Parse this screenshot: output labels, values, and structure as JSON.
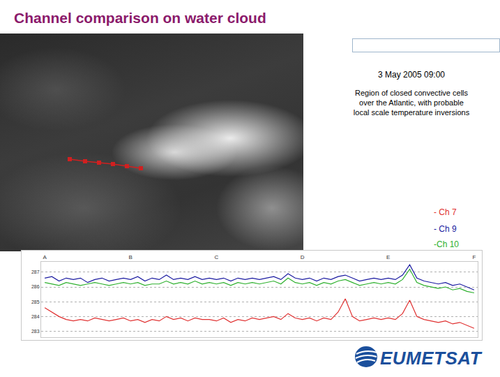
{
  "slide": {
    "title": "Channel comparison on water cloud",
    "date": "3 May 2005 09:00",
    "description": "Region of closed convective cells over the Atlantic, with probable local scale temperature inversions",
    "logo": "EUMETSAT"
  },
  "chart_data": {
    "type": "line",
    "categories": [
      "A",
      null,
      null,
      null,
      null,
      null,
      null,
      null,
      null,
      null,
      null,
      null,
      "B",
      null,
      null,
      null,
      null,
      null,
      null,
      null,
      null,
      null,
      null,
      null,
      "C",
      null,
      null,
      null,
      null,
      null,
      null,
      null,
      null,
      null,
      null,
      null,
      "D",
      null,
      null,
      null,
      null,
      null,
      null,
      null,
      null,
      null,
      null,
      null,
      "E",
      null,
      null,
      null,
      null,
      null,
      null,
      null,
      null,
      null,
      null,
      null,
      "F"
    ],
    "series": [
      {
        "name": "- Ch 7",
        "color": "#e03030",
        "values": [
          284.6,
          284.3,
          284.0,
          283.8,
          283.7,
          283.8,
          283.7,
          283.9,
          283.8,
          283.7,
          283.8,
          283.9,
          283.7,
          283.8,
          283.6,
          283.8,
          283.7,
          284.0,
          283.8,
          283.9,
          283.7,
          283.9,
          283.8,
          283.8,
          283.7,
          283.9,
          283.6,
          283.8,
          283.7,
          283.9,
          283.8,
          283.9,
          284.0,
          283.8,
          284.2,
          283.9,
          283.8,
          283.9,
          283.7,
          283.9,
          283.8,
          284.3,
          285.2,
          284.0,
          283.7,
          283.8,
          283.9,
          283.8,
          283.9,
          283.8,
          284.2,
          285.1,
          284.0,
          283.8,
          283.7,
          283.6,
          283.7,
          283.5,
          283.6,
          283.4,
          283.2
        ]
      },
      {
        "name": "- Ch 9",
        "color": "#1a1aa0",
        "values": [
          286.6,
          286.7,
          286.4,
          286.6,
          286.5,
          286.6,
          286.3,
          286.5,
          286.6,
          286.4,
          286.5,
          286.6,
          286.5,
          286.7,
          286.4,
          286.6,
          286.5,
          286.8,
          286.5,
          286.6,
          286.5,
          286.7,
          286.5,
          286.6,
          286.5,
          286.6,
          286.4,
          286.6,
          286.5,
          286.6,
          286.5,
          286.6,
          286.7,
          286.5,
          286.9,
          286.6,
          286.5,
          286.6,
          286.4,
          286.6,
          286.5,
          286.7,
          286.8,
          286.6,
          286.4,
          286.5,
          286.6,
          286.5,
          286.6,
          286.5,
          286.8,
          287.5,
          286.6,
          286.4,
          286.3,
          286.2,
          286.3,
          286.1,
          286.2,
          286.0,
          285.8
        ]
      },
      {
        "name": "-Ch 10",
        "color": "#2db02d",
        "values": [
          286.3,
          286.2,
          286.1,
          286.3,
          286.2,
          286.1,
          286.2,
          286.3,
          286.2,
          286.1,
          286.2,
          286.3,
          286.2,
          286.3,
          286.1,
          286.2,
          286.2,
          286.4,
          286.2,
          286.3,
          286.2,
          286.4,
          286.2,
          286.3,
          286.2,
          286.3,
          286.1,
          286.3,
          286.2,
          286.3,
          286.2,
          286.3,
          286.4,
          286.2,
          286.6,
          286.3,
          286.2,
          286.3,
          286.1,
          286.3,
          286.2,
          286.4,
          286.5,
          286.3,
          286.1,
          286.2,
          286.3,
          286.2,
          286.3,
          286.2,
          286.5,
          287.2,
          286.3,
          286.1,
          286.0,
          285.9,
          286.0,
          285.8,
          285.9,
          285.7,
          285.6
        ]
      }
    ],
    "ylim": [
      282.6,
      287.7
    ],
    "yticks": [
      283,
      284,
      285,
      286,
      287
    ],
    "grid": true
  }
}
